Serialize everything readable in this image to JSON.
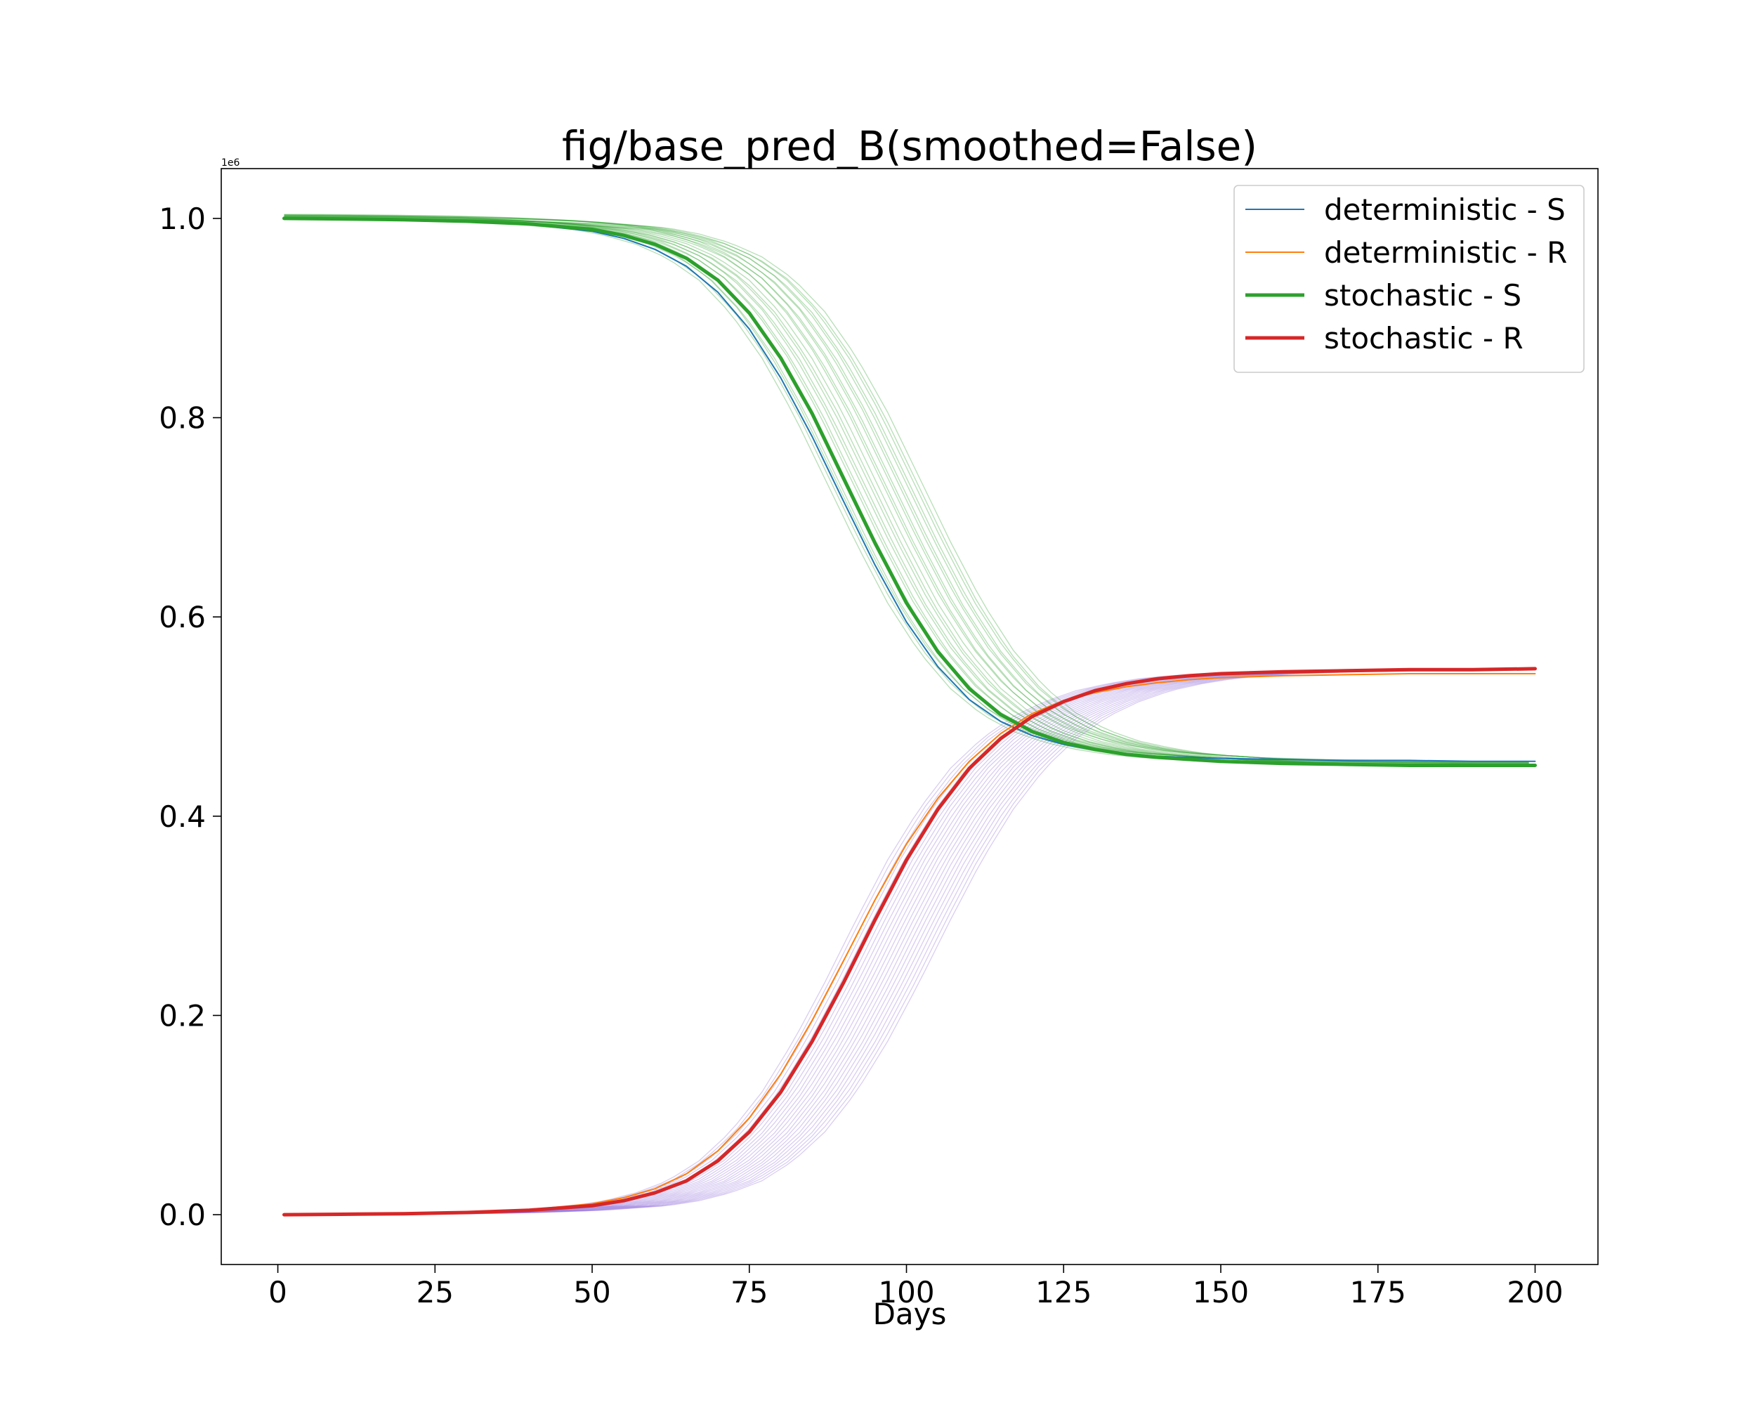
{
  "chart_data": {
    "type": "line",
    "title": "fig/base_pred_B(smoothed=False)",
    "xlabel": "Days",
    "ylabel": "",
    "xlim": [
      -9,
      210
    ],
    "ylim": [
      -0.05,
      1.05
    ],
    "y_offset_label": "1e6",
    "xticks": [
      0,
      25,
      50,
      75,
      100,
      125,
      150,
      175,
      200
    ],
    "xtick_labels": [
      "0",
      "25",
      "50",
      "75",
      "100",
      "125",
      "150",
      "175",
      "200"
    ],
    "yticks": [
      0.0,
      0.2,
      0.4,
      0.6,
      0.8,
      1.0
    ],
    "ytick_labels": [
      "0.0",
      "0.2",
      "0.4",
      "0.6",
      "0.8",
      "1.0"
    ],
    "grid": false,
    "legend_position": "top-right",
    "x": [
      1,
      10,
      20,
      30,
      40,
      50,
      55,
      60,
      65,
      70,
      75,
      80,
      85,
      90,
      95,
      100,
      105,
      110,
      115,
      120,
      125,
      130,
      135,
      140,
      145,
      150,
      160,
      170,
      180,
      190,
      200
    ],
    "series": [
      {
        "name": "deterministic - S",
        "color": "#1f77b4",
        "role": "deterministic",
        "values": [
          1.0,
          0.9995,
          0.9985,
          0.997,
          0.994,
          0.987,
          0.98,
          0.969,
          0.952,
          0.926,
          0.889,
          0.84,
          0.781,
          0.716,
          0.652,
          0.595,
          0.55,
          0.517,
          0.495,
          0.481,
          0.472,
          0.466,
          0.463,
          0.46,
          0.459,
          0.458,
          0.457,
          0.456,
          0.456,
          0.455,
          0.455
        ]
      },
      {
        "name": "deterministic - R",
        "color": "#ff7f0e",
        "role": "deterministic",
        "values": [
          0.0,
          0.0005,
          0.0012,
          0.0025,
          0.005,
          0.011,
          0.017,
          0.026,
          0.041,
          0.064,
          0.097,
          0.141,
          0.195,
          0.255,
          0.316,
          0.372,
          0.418,
          0.455,
          0.483,
          0.503,
          0.516,
          0.524,
          0.53,
          0.534,
          0.537,
          0.539,
          0.541,
          0.542,
          0.543,
          0.543,
          0.543
        ]
      },
      {
        "name": "stochastic - S",
        "color": "#2ca02c",
        "role": "stochastic",
        "values": [
          1.0,
          0.9995,
          0.9987,
          0.9972,
          0.9945,
          0.989,
          0.983,
          0.974,
          0.96,
          0.938,
          0.905,
          0.86,
          0.804,
          0.739,
          0.674,
          0.614,
          0.565,
          0.528,
          0.502,
          0.485,
          0.474,
          0.467,
          0.462,
          0.459,
          0.457,
          0.455,
          0.453,
          0.452,
          0.451,
          0.451,
          0.451
        ]
      },
      {
        "name": "stochastic - R",
        "color": "#d62728",
        "role": "stochastic",
        "values": [
          0.0,
          0.0004,
          0.001,
          0.0022,
          0.0045,
          0.009,
          0.014,
          0.022,
          0.034,
          0.054,
          0.083,
          0.123,
          0.174,
          0.233,
          0.296,
          0.356,
          0.407,
          0.448,
          0.478,
          0.5,
          0.515,
          0.526,
          0.533,
          0.538,
          0.541,
          0.543,
          0.545,
          0.546,
          0.547,
          0.547,
          0.548
        ]
      }
    ],
    "ensemble": {
      "S_color": "#2ca02c",
      "R_color": "#9370db",
      "runs": 24,
      "midpoint_spread_days": [
        -3,
        12
      ]
    }
  }
}
